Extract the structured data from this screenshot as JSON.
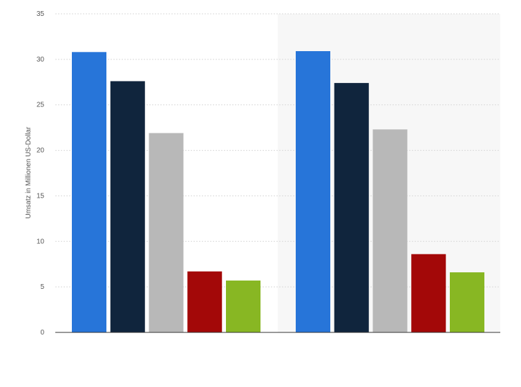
{
  "chart_data": {
    "type": "bar",
    "title": "",
    "xlabel": "",
    "ylabel": "Umsatz in Millionen US-Dollar",
    "ylim": [
      0,
      35
    ],
    "yticks": [
      0,
      5,
      10,
      15,
      20,
      25,
      30,
      35
    ],
    "grid": true,
    "legend": "none",
    "groups": [
      {
        "values": [
          30.8,
          27.6,
          21.9,
          6.7,
          5.7
        ]
      },
      {
        "values": [
          30.9,
          27.4,
          22.3,
          8.6,
          6.6
        ]
      }
    ],
    "colors": [
      "#2775d9",
      "#10253d",
      "#b8b8b8",
      "#a30808",
      "#88b723"
    ],
    "highlight_group_background": "#f7f7f7"
  }
}
